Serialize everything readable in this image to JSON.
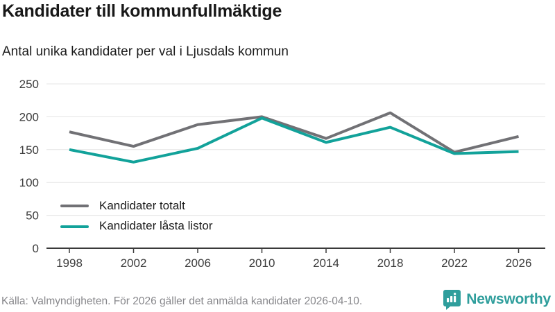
{
  "header": {
    "title": "Kandidater till kommunfullmäktige",
    "subtitle": "Antal unika kandidater per val i Ljusdals kommun"
  },
  "chart_data": {
    "type": "line",
    "title": "Kandidater till kommunfullmäktige",
    "subtitle": "Antal unika kandidater per val i Ljusdals kommun",
    "x": [
      1998,
      2002,
      2006,
      2010,
      2014,
      2018,
      2022,
      2026
    ],
    "series": [
      {
        "name": "Kandidater totalt",
        "color": "#717175",
        "values": [
          177,
          155,
          188,
          200,
          167,
          206,
          146,
          170
        ]
      },
      {
        "name": "Kandidater låsta listor",
        "color": "#12a29a",
        "values": [
          150,
          131,
          152,
          198,
          161,
          184,
          144,
          147
        ]
      }
    ],
    "xlabel": "",
    "ylabel": "",
    "ylim": [
      0,
      250
    ],
    "yticks": [
      0,
      50,
      100,
      150,
      200,
      250
    ],
    "grid": true,
    "legend_position": "inside-lower-left"
  },
  "footer": {
    "source": "Källa: Valmyndigheten. För 2026 gäller det anmälda kandidater 2026-04-10.",
    "brand": "Newsworthy"
  },
  "colors": {
    "axis": "#3a3a3a",
    "grid": "#e4e4e4",
    "tick_text": "#3d3d3d",
    "brand": "#2f9e9c"
  }
}
